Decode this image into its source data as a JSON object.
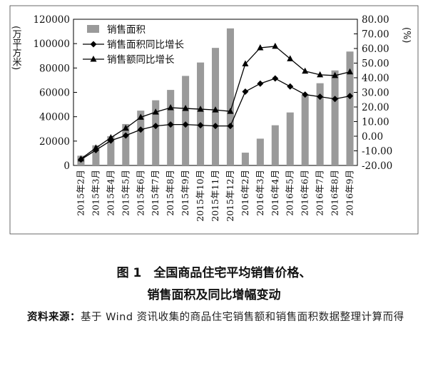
{
  "chart_data": {
    "type": "bar+line",
    "categories": [
      "2015年2月",
      "2015年3月",
      "2015年4月",
      "2015年5月",
      "2015年6月",
      "2015年7月",
      "2015年8月",
      "2015年9月",
      "2015年10月",
      "2015年11月",
      "2015年12月",
      "2016年2月",
      "2016年3月",
      "2016年4月",
      "2016年5月",
      "2016年6月",
      "2016年7月",
      "2016年8月",
      "2016年9月"
    ],
    "series": [
      {
        "name": "销售面积",
        "kind": "bar",
        "axis": "left",
        "color": "#9a9a9a",
        "values": [
          8000,
          16500,
          24000,
          34000,
          45000,
          53500,
          62000,
          73500,
          84500,
          96500,
          112500,
          10500,
          22000,
          33000,
          43500,
          58000,
          67500,
          78000,
          93500
        ]
      },
      {
        "name": "销售面积同比增长",
        "kind": "line",
        "marker": "diamond",
        "axis": "right",
        "color": "#000000",
        "values": [
          -16.0,
          -9.5,
          -3.0,
          0.5,
          4.5,
          7.0,
          8.0,
          8.0,
          7.5,
          7.0,
          7.0,
          30.5,
          36.0,
          39.5,
          34.0,
          28.5,
          27.0,
          25.5,
          27.5
        ]
      },
      {
        "name": "销售额同比增长",
        "kind": "line",
        "marker": "triangle",
        "axis": "right",
        "color": "#000000",
        "values": [
          -15.5,
          -8.0,
          -1.0,
          5.5,
          13.0,
          16.5,
          19.5,
          19.0,
          18.5,
          18.0,
          17.0,
          49.5,
          60.5,
          61.5,
          53.0,
          44.5,
          42.0,
          41.5,
          44.0
        ]
      }
    ],
    "y_left": {
      "label": "(万平方米)",
      "ylim": [
        0,
        120000
      ],
      "ticks": [
        "0",
        "20000",
        "40000",
        "60000",
        "80000",
        "100000",
        "120000"
      ]
    },
    "y_right": {
      "label": "(%)",
      "ylim": [
        -20,
        80
      ],
      "ticks": [
        "-20.00",
        "-10.00",
        "0.00",
        "10.00",
        "20.00",
        "30.00",
        "40.00",
        "50.00",
        "60.00",
        "70.00",
        "80.00"
      ]
    },
    "legend_position": "top-left",
    "grid": false
  },
  "caption": {
    "line1": "图 1　全国商品住宅平均销售价格、",
    "line2": "销售面积及同比增幅变动"
  },
  "source": {
    "label": "资料来源：",
    "text": "基于 Wind 资讯收集的商品住宅销售额和销售面积数据整理计算而得"
  }
}
